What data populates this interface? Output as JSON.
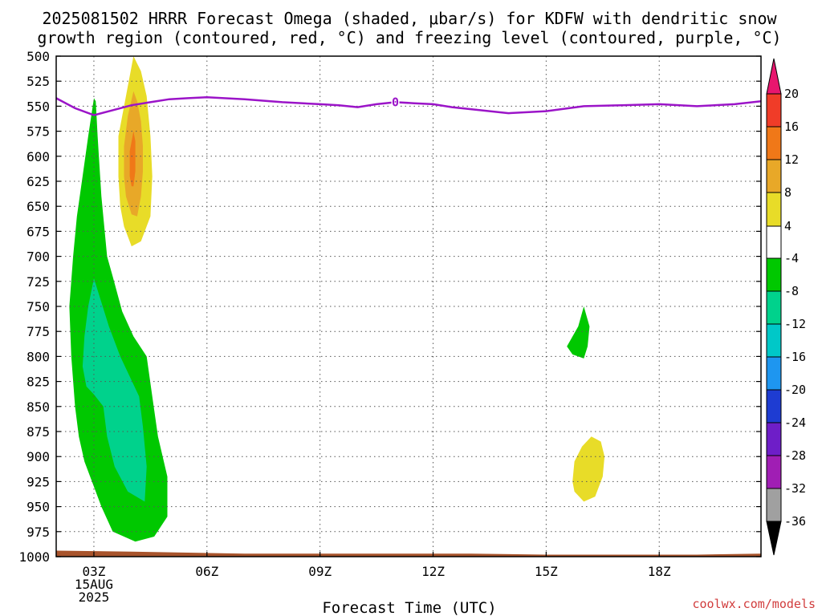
{
  "chart_data": {
    "type": "area",
    "title_lines": [
      "2025081502 HRRR Forecast Omega (shaded, μbar/s) for KDFW with dendritic snow",
      "growth region (contoured, red, °C) and freezing level (contoured, purple, °C)"
    ],
    "xlabel": "Forecast Time (UTC)",
    "watermark": "coolwx.com/models",
    "xlim": [
      2,
      20.7
    ],
    "ylim": [
      1000,
      500
    ],
    "y_ticks": [
      500,
      525,
      550,
      575,
      600,
      625,
      650,
      675,
      700,
      725,
      750,
      775,
      800,
      825,
      850,
      875,
      900,
      925,
      950,
      975,
      1000
    ],
    "x_ticks": [
      {
        "x": 3,
        "lines": [
          "03Z",
          "15AUG",
          "2025"
        ]
      },
      {
        "x": 6,
        "lines": [
          "06Z"
        ]
      },
      {
        "x": 9,
        "lines": [
          "09Z"
        ]
      },
      {
        "x": 12,
        "lines": [
          "12Z"
        ]
      },
      {
        "x": 15,
        "lines": [
          "15Z"
        ]
      },
      {
        "x": 18,
        "lines": [
          "18Z"
        ]
      }
    ],
    "grid": true,
    "colorbar": {
      "labels": [
        "20",
        "16",
        "12",
        "8",
        "4",
        "-4",
        "-8",
        "-12",
        "-16",
        "-20",
        "-24",
        "-28",
        "-32",
        "-36"
      ],
      "colors": [
        "#e8166e",
        "#f03c28",
        "#f07818",
        "#e8a828",
        "#e8dc28",
        "#ffffff",
        "#00c800",
        "#00d28c",
        "#00c8c8",
        "#1e96f0",
        "#1e3cd2",
        "#6e1ec8",
        "#a01eb4",
        "#a0a0a0",
        "#000000"
      ]
    },
    "freezing_level": {
      "label": "0",
      "color": "#9b14c8",
      "x": [
        2,
        2.5,
        3,
        3.5,
        4,
        4.5,
        5,
        5.5,
        6,
        7,
        8,
        9,
        9.5,
        10,
        10.5,
        11,
        11.5,
        12,
        12.5,
        13,
        14,
        15,
        16,
        17,
        18,
        19,
        20,
        20.7
      ],
      "p": [
        542,
        552,
        559,
        554,
        549,
        546,
        543,
        542,
        541,
        543,
        546,
        548,
        549,
        551,
        548,
        546,
        547,
        548,
        551,
        553,
        557,
        555,
        550,
        549,
        548,
        550,
        548,
        545
      ]
    },
    "surface": {
      "color": "#a8542c",
      "x": [
        2,
        4,
        5.5,
        7,
        9,
        11,
        13,
        15,
        17,
        19,
        20.7
      ],
      "p": [
        994,
        995,
        996,
        997,
        997,
        997,
        997,
        998,
        998,
        998,
        997
      ]
    },
    "regions": [
      {
        "name": "-4",
        "color": "#00c800",
        "x": [
          3,
          2.85,
          2.7,
          2.55,
          2.45,
          2.35,
          2.4,
          2.5,
          2.6,
          2.75,
          2.95,
          3.2,
          3.5,
          4.1,
          4.6,
          4.95,
          4.95,
          4.7,
          4.55,
          4.4,
          4.05,
          3.75,
          3.5,
          3.35,
          3.2,
          3.1,
          3.05
        ],
        "p": [
          542,
          580,
          620,
          660,
          700,
          750,
          800,
          850,
          880,
          905,
          925,
          950,
          975,
          985,
          980,
          960,
          920,
          880,
          840,
          800,
          780,
          755,
          720,
          700,
          640,
          580,
          545
        ]
      },
      {
        "name": "-8",
        "color": "#00d28c",
        "x": [
          3,
          2.85,
          2.75,
          2.7,
          2.8,
          3.0,
          3.25,
          3.35,
          3.55,
          3.9,
          4.35,
          4.4,
          4.3,
          4.2,
          3.95,
          3.7,
          3.4,
          3.15
        ],
        "p": [
          722,
          750,
          780,
          810,
          830,
          838,
          850,
          880,
          910,
          935,
          945,
          910,
          870,
          840,
          820,
          800,
          770,
          740
        ]
      },
      {
        "name": "4",
        "color": "#e8dc28",
        "x": [
          4.05,
          3.85,
          3.65,
          3.65,
          3.7,
          3.8,
          4.0,
          4.25,
          4.5,
          4.55,
          4.5,
          4.4,
          4.25
        ],
        "p": [
          500,
          540,
          580,
          620,
          650,
          670,
          690,
          685,
          660,
          620,
          580,
          540,
          515
        ]
      },
      {
        "name": "8",
        "color": "#e8a828",
        "x": [
          4.05,
          3.9,
          3.8,
          3.8,
          3.85,
          4.0,
          4.15,
          4.25,
          4.3,
          4.3,
          4.25,
          4.15
        ],
        "p": [
          535,
          560,
          590,
          620,
          640,
          658,
          660,
          640,
          615,
          590,
          565,
          545
        ]
      },
      {
        "name": "12",
        "color": "#f07818",
        "x": [
          4.05,
          3.95,
          3.95,
          4.0,
          4.05,
          4.1,
          4.1
        ],
        "p": [
          575,
          595,
          620,
          630,
          630,
          615,
          585
        ]
      },
      {
        "name": "-4",
        "color": "#00c800",
        "x": [
          16.0,
          15.85,
          15.55,
          15.7,
          16.0,
          16.1,
          16.15
        ],
        "p": [
          750,
          770,
          790,
          798,
          802,
          790,
          770
        ]
      },
      {
        "name": "4",
        "color": "#e8dc28",
        "x": [
          16.2,
          15.95,
          15.75,
          15.7,
          15.75,
          16.0,
          16.3,
          16.5,
          16.55,
          16.45
        ],
        "p": [
          880,
          890,
          905,
          925,
          935,
          945,
          940,
          920,
          900,
          885
        ]
      }
    ]
  }
}
